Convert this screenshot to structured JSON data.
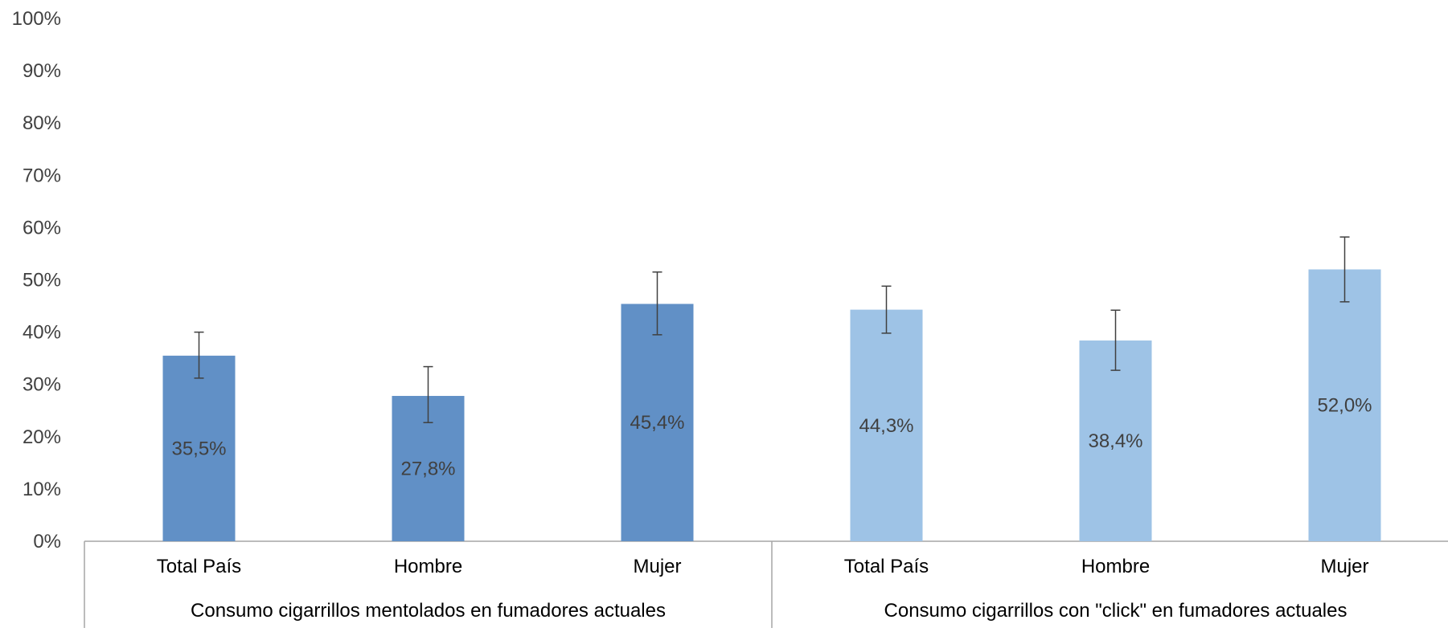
{
  "chart_data": {
    "type": "bar",
    "title": "",
    "xlabel": "",
    "ylabel": "",
    "ylim": [
      0,
      100
    ],
    "y_ticks": [
      "0%",
      "10%",
      "20%",
      "30%",
      "40%",
      "50%",
      "60%",
      "70%",
      "80%",
      "90%",
      "100%"
    ],
    "grid": false,
    "legend": "none",
    "groups": [
      {
        "label": "Consumo cigarrillos mentolados en fumadores actuales",
        "color": "#6190c6",
        "bars": [
          {
            "category": "Total País",
            "value": 35.5,
            "label": "35,5%",
            "err_low": 31.2,
            "err_high": 40.0
          },
          {
            "category": "Hombre",
            "value": 27.8,
            "label": "27,8%",
            "err_low": 22.7,
            "err_high": 33.4
          },
          {
            "category": "Mujer",
            "value": 45.4,
            "label": "45,4%",
            "err_low": 39.5,
            "err_high": 51.5
          }
        ]
      },
      {
        "label": "Consumo cigarrillos con \"click\" en fumadores actuales",
        "color": "#9ec3e6",
        "bars": [
          {
            "category": "Total País",
            "value": 44.3,
            "label": "44,3%",
            "err_low": 39.8,
            "err_high": 48.8
          },
          {
            "category": "Hombre",
            "value": 38.4,
            "label": "38,4%",
            "err_low": 32.7,
            "err_high": 44.2
          },
          {
            "category": "Mujer",
            "value": 52.0,
            "label": "52,0%",
            "err_low": 45.8,
            "err_high": 58.2
          }
        ]
      }
    ]
  }
}
